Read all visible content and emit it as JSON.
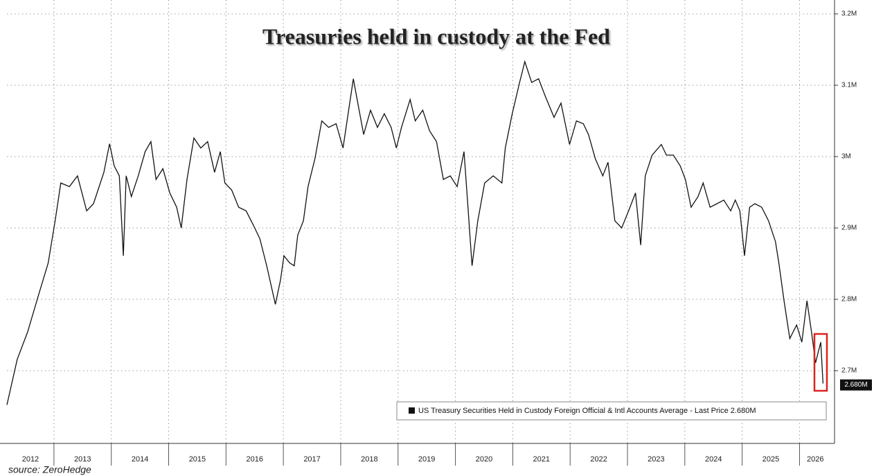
{
  "chart_data": {
    "type": "line",
    "title": "Treasuries held in custody at the Fed",
    "source": "source: ZeroHedge",
    "xlim": [
      2012.18,
      2026.55
    ],
    "xticks": [
      {
        "value": 2012,
        "label": "2012"
      },
      {
        "value": 2013,
        "label": "2013"
      },
      {
        "value": 2014,
        "label": "2014"
      },
      {
        "value": 2015,
        "label": "2015"
      },
      {
        "value": 2016,
        "label": "2016"
      },
      {
        "value": 2017,
        "label": "2017"
      },
      {
        "value": 2018,
        "label": "2018"
      },
      {
        "value": 2019,
        "label": "2019"
      },
      {
        "value": 2020,
        "label": "2020"
      },
      {
        "value": 2021,
        "label": "2021"
      },
      {
        "value": 2022,
        "label": "2022"
      },
      {
        "value": 2023,
        "label": "2023"
      },
      {
        "value": 2024,
        "label": "2024"
      },
      {
        "value": 2025,
        "label": "2025"
      },
      {
        "value": 2026,
        "label": "2026"
      }
    ],
    "ylim": [
      2.6,
      3.2
    ],
    "yticks": [
      {
        "value": 2.7,
        "label": "2.7M"
      },
      {
        "value": 2.8,
        "label": "2.8M"
      },
      {
        "value": 2.9,
        "label": "2.9M"
      },
      {
        "value": 3,
        "label": "3M"
      },
      {
        "value": 3.1,
        "label": "3.1M"
      },
      {
        "value": 3.2,
        "label": "3.2M"
      }
    ],
    "grid": true,
    "last_price": {
      "value": 2.68,
      "label": "2.680M"
    },
    "x": [
      2012.18,
      2012.36,
      2012.54,
      2012.72,
      2012.9,
      2013.02,
      2013.12,
      2013.27,
      2013.41,
      2013.57,
      2013.69,
      2013.87,
      2013.97,
      2014.05,
      2014.14,
      2014.21,
      2014.26,
      2014.35,
      2014.47,
      2014.59,
      2014.69,
      2014.78,
      2014.9,
      2015.02,
      2015.14,
      2015.22,
      2015.32,
      2015.44,
      2015.56,
      2015.68,
      2015.8,
      2015.9,
      2015.98,
      2016.1,
      2016.22,
      2016.35,
      2016.47,
      2016.59,
      2016.71,
      2016.86,
      2016.95,
      2017.01,
      2017.11,
      2017.19,
      2017.25,
      2017.35,
      2017.43,
      2017.55,
      2017.67,
      2017.79,
      2017.92,
      2018.04,
      2018.12,
      2018.22,
      2018.31,
      2018.4,
      2018.52,
      2018.64,
      2018.76,
      2018.88,
      2018.97,
      2019.06,
      2019.21,
      2019.3,
      2019.43,
      2019.55,
      2019.67,
      2019.79,
      2019.91,
      2020.03,
      2020.15,
      2020.21,
      2020.29,
      2020.39,
      2020.51,
      2020.66,
      2020.81,
      2020.87,
      2020.99,
      2021.12,
      2021.21,
      2021.33,
      2021.45,
      2021.57,
      2021.72,
      2021.84,
      2021.99,
      2022.11,
      2022.23,
      2022.32,
      2022.44,
      2022.57,
      2022.66,
      2022.78,
      2022.9,
      2023.02,
      2023.14,
      2023.23,
      2023.31,
      2023.43,
      2023.59,
      2023.68,
      2023.8,
      2023.92,
      2024.01,
      2024.11,
      2024.23,
      2024.32,
      2024.44,
      2024.56,
      2024.68,
      2024.8,
      2024.88,
      2024.96,
      2025.04,
      2025.13,
      2025.22,
      2025.34,
      2025.46,
      2025.58,
      2025.64,
      2025.73,
      2025.83,
      2025.95,
      2026.04,
      2026.13,
      2026.21,
      2026.28,
      2026.37,
      2026.41
    ],
    "series": [
      {
        "name": "US Treasury Securities Held in Custody Foreign Official & Intl Accounts Average - Last Price 2.680M",
        "color": "#111111",
        "values": [
          2.652,
          2.716,
          2.754,
          2.803,
          2.851,
          2.91,
          2.963,
          2.958,
          2.973,
          2.924,
          2.934,
          2.978,
          3.018,
          2.987,
          2.973,
          2.861,
          2.973,
          2.944,
          2.973,
          3.007,
          3.021,
          2.968,
          2.983,
          2.949,
          2.929,
          2.9,
          2.968,
          3.026,
          3.012,
          3.021,
          2.978,
          3.007,
          2.963,
          2.953,
          2.929,
          2.924,
          2.905,
          2.885,
          2.847,
          2.793,
          2.827,
          2.861,
          2.851,
          2.847,
          2.89,
          2.91,
          2.958,
          2.997,
          3.05,
          3.041,
          3.046,
          3.012,
          3.055,
          3.109,
          3.07,
          3.031,
          3.065,
          3.041,
          3.06,
          3.041,
          3.012,
          3.041,
          3.08,
          3.05,
          3.065,
          3.036,
          3.021,
          2.968,
          2.973,
          2.958,
          3.007,
          2.939,
          2.847,
          2.91,
          2.963,
          2.973,
          2.963,
          3.012,
          3.06,
          3.104,
          3.133,
          3.104,
          3.109,
          3.084,
          3.055,
          3.075,
          3.017,
          3.05,
          3.046,
          3.031,
          2.997,
          2.973,
          2.992,
          2.91,
          2.9,
          2.924,
          2.949,
          2.876,
          2.973,
          3.002,
          3.017,
          3.002,
          3.002,
          2.987,
          2.968,
          2.929,
          2.944,
          2.963,
          2.929,
          2.934,
          2.939,
          2.924,
          2.939,
          2.924,
          2.861,
          2.929,
          2.934,
          2.929,
          2.91,
          2.881,
          2.851,
          2.798,
          2.745,
          2.764,
          2.74,
          2.798,
          2.754,
          2.711,
          2.74,
          2.682
        ]
      }
    ]
  }
}
